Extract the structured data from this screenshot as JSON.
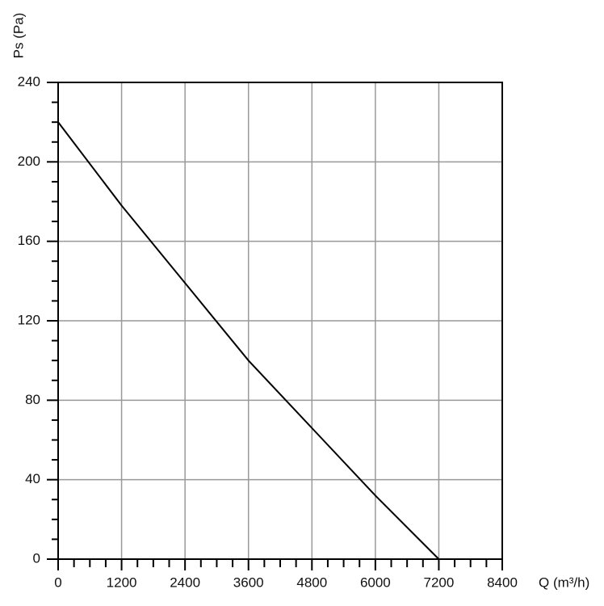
{
  "chart_data": {
    "type": "line",
    "xlabel": "Q (m³/h)",
    "ylabel": "Ps (Pa)",
    "x": [
      0,
      1200,
      2400,
      3600,
      4800,
      6000,
      7200
    ],
    "series": [
      {
        "name": null,
        "color": "#000000",
        "values": [
          220,
          178,
          139,
          100,
          66,
          32,
          0
        ]
      }
    ],
    "xlim": [
      0,
      8400
    ],
    "xticks": [
      0,
      1200,
      2400,
      3600,
      4800,
      6000,
      7200,
      8400
    ],
    "ylim": [
      0,
      240
    ],
    "yticks": [
      0,
      40,
      80,
      120,
      160,
      200,
      240
    ],
    "xticks_minor": [
      300,
      600,
      900,
      1500,
      1800,
      2100,
      2700,
      3000,
      3300,
      3900,
      4200,
      4500,
      5100,
      5400,
      5700,
      6300,
      6600,
      6900,
      7500,
      7800,
      8100
    ],
    "yticks_minor": [
      10,
      20,
      30,
      50,
      60,
      70,
      90,
      100,
      110,
      130,
      140,
      150,
      170,
      180,
      190,
      210,
      220,
      230
    ],
    "grid": true
  }
}
